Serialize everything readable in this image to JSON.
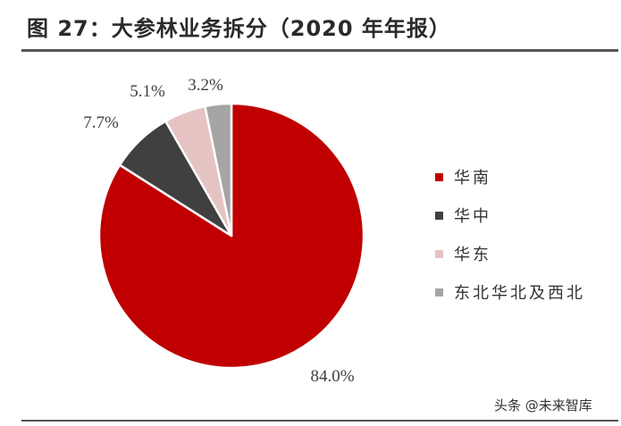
{
  "title": "图 27：大参林业务拆分（2020 年年报）",
  "watermark": "头条 @未来智库",
  "chart_data": {
    "type": "pie",
    "title": "图 27：大参林业务拆分（2020 年年报）",
    "slices": [
      {
        "label": "华南",
        "value": 84.0,
        "value_label": "84.0%",
        "color": "#c00000"
      },
      {
        "label": "华中",
        "value": 7.7,
        "value_label": "7.7%",
        "color": "#404040"
      },
      {
        "label": "华东",
        "value": 5.1,
        "value_label": "5.1%",
        "color": "#e6c3c3"
      },
      {
        "label": "东北华北及西北",
        "value": 3.2,
        "value_label": "3.2%",
        "color": "#a5a5a5"
      }
    ],
    "legend_position": "right",
    "start_angle": "12 o'clock",
    "direction": "clockwise"
  }
}
